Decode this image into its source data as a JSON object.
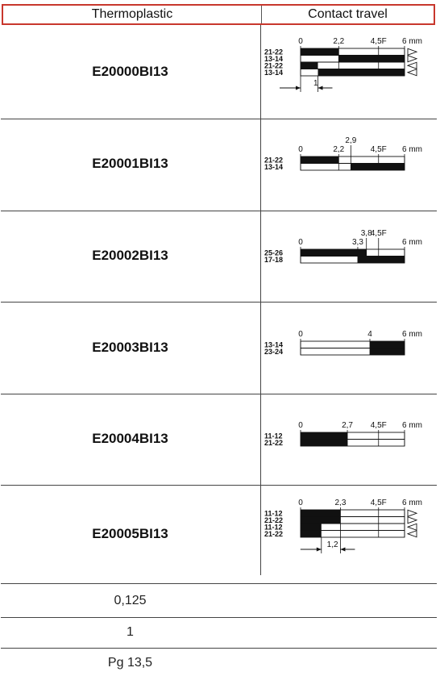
{
  "header": {
    "col1": "Thermoplastic",
    "col2": "Contact travel"
  },
  "products": [
    {
      "code": "E20000BI13",
      "tick_labels": [
        "0",
        "2,2",
        "4,5F",
        "6 mm"
      ],
      "ticks": [
        0,
        2.2,
        4.5,
        6
      ],
      "contacts": [
        {
          "label": "21-22",
          "closed": [
            [
              0,
              2.2
            ]
          ]
        },
        {
          "label": "13-14",
          "closed": [
            [
              2.2,
              6
            ]
          ]
        },
        {
          "label": "21-22",
          "closed": [
            [
              0,
              1
            ]
          ]
        },
        {
          "label": "13-14",
          "closed": [
            [
              1,
              6
            ]
          ]
        }
      ],
      "arrows": [
        "right",
        "right",
        "left",
        "left"
      ],
      "dimension": {
        "label": "1",
        "from": 0,
        "to": 1
      }
    },
    {
      "code": "E20001BI13",
      "tick_labels": [
        "0",
        "2,2",
        "2,9",
        "4,5F",
        "6 mm"
      ],
      "ticks": [
        0,
        2.2,
        2.9,
        4.5,
        6
      ],
      "contacts": [
        {
          "label": "21-22",
          "closed": [
            [
              0,
              2.2
            ]
          ]
        },
        {
          "label": "13-14",
          "closed": [
            [
              2.9,
              6
            ]
          ]
        }
      ]
    },
    {
      "code": "E20002BI13",
      "tick_labels": [
        "0",
        "3,3",
        "3,8",
        "4,5F",
        "6 mm"
      ],
      "ticks": [
        0,
        3.3,
        3.8,
        4.5,
        6
      ],
      "contacts": [
        {
          "label": "25-26",
          "closed": [
            [
              0,
              3.8
            ]
          ]
        },
        {
          "label": "17-18",
          "closed": [
            [
              3.3,
              6
            ]
          ]
        }
      ]
    },
    {
      "code": "E20003BI13",
      "tick_labels": [
        "0",
        "4",
        "6 mm"
      ],
      "ticks": [
        0,
        4,
        6
      ],
      "contacts": [
        {
          "label": "13-14",
          "closed": [
            [
              4,
              6
            ]
          ]
        },
        {
          "label": "23-24",
          "closed": [
            [
              4,
              6
            ]
          ]
        }
      ]
    },
    {
      "code": "E20004BI13",
      "tick_labels": [
        "0",
        "2,7",
        "4,5F",
        "6 mm"
      ],
      "ticks": [
        0,
        2.7,
        4.5,
        6
      ],
      "contacts": [
        {
          "label": "11-12",
          "closed": [
            [
              0,
              2.7
            ]
          ]
        },
        {
          "label": "21-22",
          "closed": [
            [
              0,
              2.7
            ]
          ]
        }
      ]
    },
    {
      "code": "E20005BI13",
      "tick_labels": [
        "0",
        "2,3",
        "4,5F",
        "6 mm"
      ],
      "ticks": [
        0,
        2.3,
        4.5,
        6
      ],
      "contacts": [
        {
          "label": "11-12",
          "closed": [
            [
              0,
              2.3
            ]
          ]
        },
        {
          "label": "21-22",
          "closed": [
            [
              0,
              2.3
            ]
          ]
        },
        {
          "label": "11-12",
          "closed": [
            [
              0,
              1.2
            ]
          ]
        },
        {
          "label": "21-22",
          "closed": [
            [
              0,
              1.2
            ]
          ]
        }
      ],
      "arrows": [
        "right",
        "right",
        "left",
        "left"
      ],
      "dimension": {
        "label": "1,2",
        "from": 1.2,
        "to": 2.3
      }
    }
  ],
  "bottom_rows": [
    "0,125",
    "1",
    "Pg 13,5"
  ]
}
